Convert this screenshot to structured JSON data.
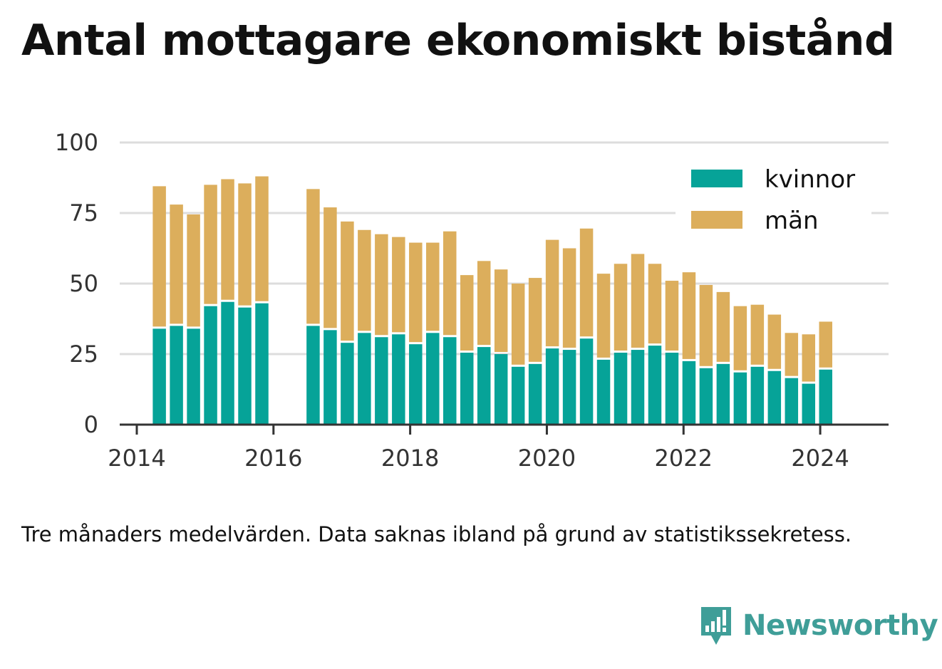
{
  "title": "Antal mottagare ekonomiskt bistånd",
  "note": "Tre månaders medelvärden. Data saknas ibland på grund av statistikssekretess.",
  "brand": "Newsworthy",
  "colors": {
    "kvinnor": "#06a398",
    "man": "#dcae5c",
    "grid": "#dddddd",
    "axis": "#333333",
    "brand": "#3f9e98"
  },
  "chart_data": {
    "type": "bar",
    "stacked": true,
    "xlabel": "",
    "ylabel": "",
    "ylim": [
      0,
      100
    ],
    "yticks": [
      0,
      25,
      50,
      75,
      100
    ],
    "xticks": [
      2014,
      2016,
      2018,
      2020,
      2022,
      2024
    ],
    "grid": true,
    "legend_position": "top-right",
    "x": [
      2014.33,
      2014.58,
      2014.83,
      2015.08,
      2015.33,
      2015.58,
      2015.83,
      2016.58,
      2016.83,
      2017.08,
      2017.33,
      2017.58,
      2017.83,
      2018.08,
      2018.33,
      2018.58,
      2018.83,
      2019.08,
      2019.33,
      2019.58,
      2019.83,
      2020.08,
      2020.33,
      2020.58,
      2020.83,
      2021.08,
      2021.33,
      2021.58,
      2021.83,
      2022.08,
      2022.33,
      2022.58,
      2022.83,
      2023.08,
      2023.33,
      2023.58,
      2023.83,
      2024.08
    ],
    "series": [
      {
        "name": "kvinnor",
        "values": [
          34,
          35,
          34,
          42,
          43.5,
          41.5,
          43,
          35,
          33.5,
          29,
          32.5,
          31,
          32,
          28.5,
          32.5,
          31,
          25.5,
          27.5,
          25,
          20.5,
          21.5,
          27,
          26.5,
          30.5,
          23,
          25.5,
          26.5,
          28,
          25.5,
          22.5,
          20,
          21.5,
          18.5,
          20.5,
          19,
          16.5,
          14.5,
          19.5
        ]
      },
      {
        "name": "män",
        "values": [
          50.5,
          43,
          40.5,
          43,
          43.5,
          44,
          45,
          48.5,
          43.5,
          43,
          36.5,
          36.5,
          34.5,
          36,
          32,
          37.5,
          27.5,
          30.5,
          30,
          29.5,
          30.5,
          38.5,
          36,
          39,
          30.5,
          31.5,
          34,
          29,
          25.5,
          31.5,
          29.5,
          25.5,
          23.5,
          22,
          20,
          16,
          17.5,
          17
        ]
      }
    ]
  }
}
